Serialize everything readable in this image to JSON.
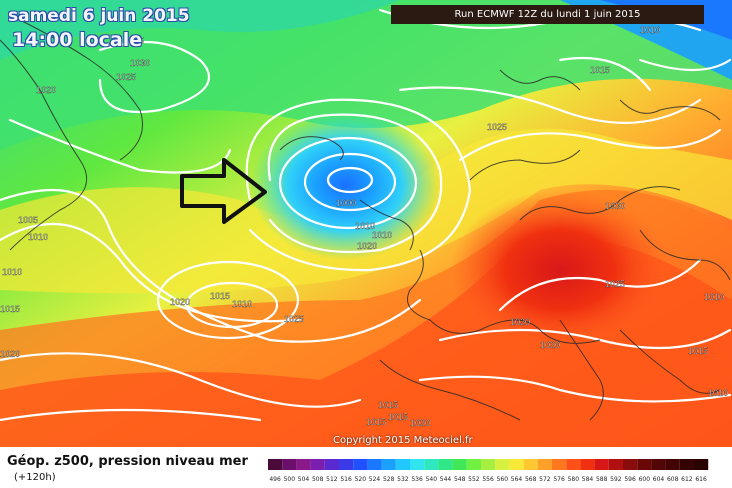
{
  "header": {
    "date": "samedi 6 juin 2015",
    "time": "14:00 locale",
    "run": "Run ECMWF 12Z du lundi 1 juin 2015"
  },
  "copyright": "Copyright 2015 Meteociel.fr",
  "legend": {
    "title": "Géop. z500, pression niveau mer",
    "subtitle": "(+120h)",
    "scale": [
      {
        "label": "496",
        "color": "#4a0a3a"
      },
      {
        "label": "500",
        "color": "#6a0f6a"
      },
      {
        "label": "504",
        "color": "#8a1a8a"
      },
      {
        "label": "508",
        "color": "#7a1fb0"
      },
      {
        "label": "512",
        "color": "#5a2ad0"
      },
      {
        "label": "516",
        "color": "#3a3ae8"
      },
      {
        "label": "520",
        "color": "#2050ff"
      },
      {
        "label": "524",
        "color": "#1a78ff"
      },
      {
        "label": "528",
        "color": "#1aa0ff"
      },
      {
        "label": "532",
        "color": "#20c8ff"
      },
      {
        "label": "536",
        "color": "#30e4f0"
      },
      {
        "label": "540",
        "color": "#30e8c0"
      },
      {
        "label": "544",
        "color": "#30e888"
      },
      {
        "label": "548",
        "color": "#40e858"
      },
      {
        "label": "552",
        "color": "#70f040"
      },
      {
        "label": "556",
        "color": "#a8f040"
      },
      {
        "label": "560",
        "color": "#d8f040"
      },
      {
        "label": "564",
        "color": "#f8e838"
      },
      {
        "label": "568",
        "color": "#ffc830"
      },
      {
        "label": "572",
        "color": "#ffa028"
      },
      {
        "label": "576",
        "color": "#ff7820"
      },
      {
        "label": "580",
        "color": "#ff5018"
      },
      {
        "label": "584",
        "color": "#f03010"
      },
      {
        "label": "588",
        "color": "#d81818"
      },
      {
        "label": "592",
        "color": "#b01010"
      },
      {
        "label": "596",
        "color": "#8a0c0c"
      },
      {
        "label": "600",
        "color": "#6a0808"
      },
      {
        "label": "604",
        "color": "#520606"
      },
      {
        "label": "608",
        "color": "#420404"
      },
      {
        "label": "612",
        "color": "#340404"
      },
      {
        "label": "616",
        "color": "#2a0202"
      }
    ]
  },
  "isobar_labels": [
    "1030",
    "1025",
    "1020",
    "1010",
    "1005",
    "1010",
    "1010",
    "1015",
    "1020",
    "1015",
    "1010",
    "1025",
    "1000",
    "1010",
    "1020",
    "1015",
    "1025",
    "1030",
    "1025",
    "1020",
    "1020",
    "1010",
    "1015",
    "1015",
    "1020",
    "1015",
    "1010",
    "1010",
    "1015",
    "1020",
    "25"
  ],
  "annotation": "arrow-pointing-to-low"
}
